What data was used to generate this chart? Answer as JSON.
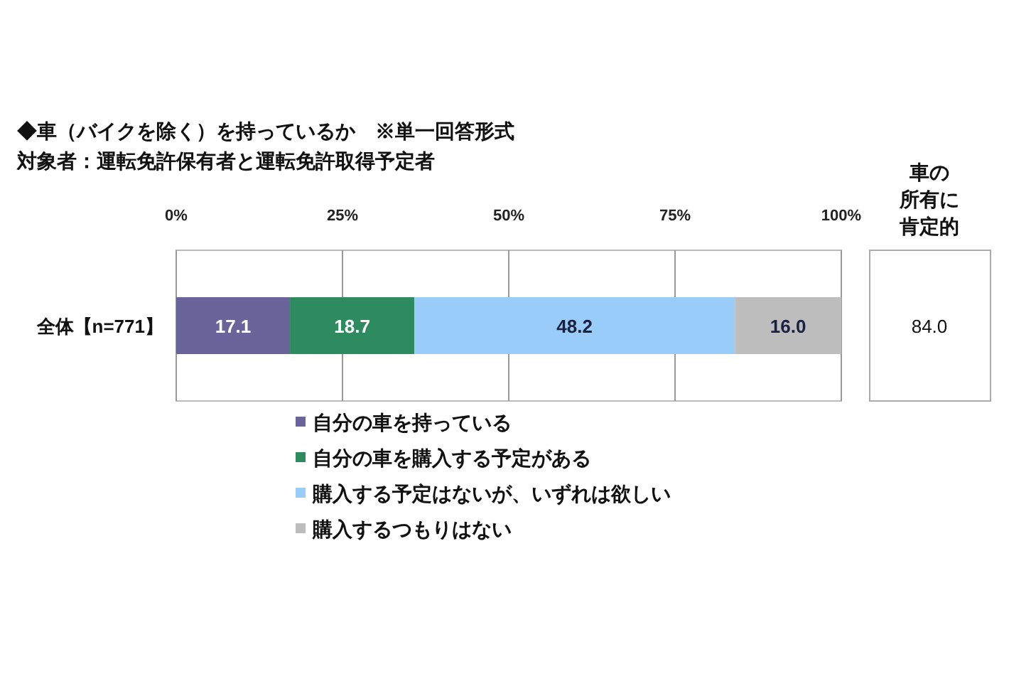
{
  "chart_data": {
    "type": "bar",
    "orientation": "horizontal",
    "stacked": true,
    "title": "◆車（バイクを除く）を持っているか　※単一回答形式",
    "subtitle": "対象者：運転免許保有者と運転免許取得予定者",
    "categories": [
      "全体【n=771】"
    ],
    "series": [
      {
        "name": "自分の車を持っている",
        "color": "#6a649b",
        "values": [
          17.1
        ],
        "value_labels": [
          "17.1"
        ]
      },
      {
        "name": "自分の車を購入する予定がある",
        "color": "#2e8b60",
        "values": [
          18.7
        ],
        "value_labels": [
          "18.7"
        ]
      },
      {
        "name": "購入する予定はないが、いずれは欲しい",
        "color": "#99ccf8",
        "values": [
          48.2
        ],
        "value_labels": [
          "48.2"
        ]
      },
      {
        "name": "購入するつもりはない",
        "color": "#bdbdbd",
        "values": [
          16.0
        ],
        "value_labels": [
          "16.0"
        ]
      }
    ],
    "xlim": [
      0,
      100
    ],
    "xticks": [
      {
        "value": 0,
        "label": "0%"
      },
      {
        "value": 25,
        "label": "25%"
      },
      {
        "value": 50,
        "label": "50%"
      },
      {
        "value": 75,
        "label": "75%"
      },
      {
        "value": 100,
        "label": "100%"
      }
    ],
    "grid": "x",
    "legend": "bottom",
    "annotations": [
      "車の",
      "所有に",
      "肯定的",
      "84.0"
    ]
  }
}
